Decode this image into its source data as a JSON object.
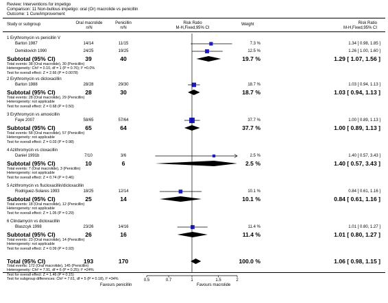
{
  "header": {
    "review": "Review:  Interventions for impetigo",
    "comparison": "Comparison:  11 Non-bullous impetigo: oral (Or) macrolide vs penicillin",
    "outcome": "Outcome:  1 Cure/improvement"
  },
  "columns": {
    "study": "Study or subgroup",
    "exp_title": "Oral macrolide",
    "exp_sub": "n/N",
    "ctl_title": "Penicillin",
    "ctl_sub": "n/N",
    "rr_title": "Risk Ratio",
    "rr_sub": "M-H,Fixed,95% CI",
    "weight": "Weight",
    "rr2_title": "Risk Ratio",
    "rr2_sub": "M-H,Fixed,95% CI"
  },
  "chart_data": {
    "type": "forest",
    "x_scale": "log",
    "xlim": [
      0.5,
      2
    ],
    "x_ticks": [
      "0.5",
      "0.7",
      "1",
      "1.5",
      "2"
    ],
    "x_tick_values": [
      0.5,
      0.7,
      1,
      1.5,
      2
    ],
    "favours_left": "Favours penicillin",
    "favours_right": "Favours macrolide",
    "colors": {
      "study_box": "#1a1ad0",
      "diamond": "#000000",
      "line": "#000000"
    },
    "groups": [
      {
        "title": "1 Erythromycin vs penicillin V",
        "studies": [
          {
            "name": "Barton 1987",
            "exp": "14/14",
            "ctl": "11/15",
            "weight": "7.3 %",
            "ci_text": "1.34 [ 0.98, 1.85 ]",
            "rr": 1.34,
            "lo": 0.98,
            "hi": 1.85,
            "w": 7.3
          },
          {
            "name": "Demidovich 1990",
            "exp": "24/25",
            "ctl": "19/25",
            "weight": "12.5 %",
            "ci_text": "1.26 [ 1.00, 1.60 ]",
            "rr": 1.26,
            "lo": 1.0,
            "hi": 1.6,
            "w": 12.5
          }
        ],
        "subtotal": {
          "label": "Subtotal (95% CI)",
          "exp": "39",
          "ctl": "40",
          "weight": "19.7 %",
          "ci_text": "1.29 [ 1.07, 1.56 ]",
          "rr": 1.29,
          "lo": 1.07,
          "hi": 1.56
        },
        "notes": [
          "Total events: 38 (Oral macrolide), 30 (Penicillin)",
          "Heterogeneity: Chi² = 0.10, df = 1 (P = 0.76); I² =0.0%",
          "Test for overall effect: Z = 2.66 (P = 0.0078)"
        ]
      },
      {
        "title": "2 Erythromycin vs dicloxacillin",
        "studies": [
          {
            "name": "Barton 1988",
            "exp": "28/28",
            "ctl": "29/30",
            "weight": "18.7 %",
            "ci_text": "1.03 [ 0.94, 1.13 ]",
            "rr": 1.03,
            "lo": 0.94,
            "hi": 1.13,
            "w": 18.7
          }
        ],
        "subtotal": {
          "label": "Subtotal (95% CI)",
          "exp": "28",
          "ctl": "30",
          "weight": "18.7 %",
          "ci_text": "1.03 [ 0.94, 1.13 ]",
          "rr": 1.03,
          "lo": 0.94,
          "hi": 1.13
        },
        "notes": [
          "Total events: 28 (Oral macrolide), 29 (Penicillin)",
          "Heterogeneity: not applicable",
          "Test for overall effect: Z = 0.68 (P = 0.50)"
        ]
      },
      {
        "title": "3 Erythromycin vs amoxicillin",
        "studies": [
          {
            "name": "Faye 2007",
            "exp": "58/65",
            "ctl": "57/64",
            "weight": "37.7 %",
            "ci_text": "1.00 [ 0.89, 1.13 ]",
            "rr": 1.0,
            "lo": 0.89,
            "hi": 1.13,
            "w": 37.7
          }
        ],
        "subtotal": {
          "label": "Subtotal (95% CI)",
          "exp": "65",
          "ctl": "64",
          "weight": "37.7 %",
          "ci_text": "1.00 [ 0.89, 1.13 ]",
          "rr": 1.0,
          "lo": 0.89,
          "hi": 1.13
        },
        "notes": [
          "Total events: 58 (Oral macrolide), 57 (Penicillin)",
          "Heterogeneity: not applicable",
          "Test for overall effect: Z = 0.03 (P = 0.98)"
        ]
      },
      {
        "title": "4 Azithromycin vs cloxacillin",
        "studies": [
          {
            "name": "Daniel 1991b",
            "exp": "7/10",
            "ctl": "3/6",
            "weight": "2.5 %",
            "ci_text": "1.40 [ 0.57, 3.43 ]",
            "rr": 1.4,
            "lo": 0.57,
            "hi": 3.43,
            "w": 2.5
          }
        ],
        "subtotal": {
          "label": "Subtotal (95% CI)",
          "exp": "10",
          "ctl": "6",
          "weight": "2.5 %",
          "ci_text": "1.40 [ 0.57, 3.43 ]",
          "rr": 1.4,
          "lo": 0.57,
          "hi": 3.43
        },
        "notes": [
          "Total events: 7 (Oral macrolide), 3 (Penicillin)",
          "Heterogeneity: not applicable",
          "Test for overall effect: Z = 0.74 (P = 0.46)"
        ]
      },
      {
        "title": "5 Azithromycin vs flucloxacillin/dicloxacillin",
        "studies": [
          {
            "name": "Rodriguez-Solares 1993",
            "exp": "18/25",
            "ctl": "12/14",
            "weight": "10.1 %",
            "ci_text": "0.84 [ 0.61, 1.16 ]",
            "rr": 0.84,
            "lo": 0.61,
            "hi": 1.16,
            "w": 10.1
          }
        ],
        "subtotal": {
          "label": "Subtotal (95% CI)",
          "exp": "25",
          "ctl": "14",
          "weight": "10.1 %",
          "ci_text": "0.84 [ 0.61, 1.16 ]",
          "rr": 0.84,
          "lo": 0.61,
          "hi": 1.16
        },
        "notes": [
          "Total events: 18 (Oral macrolide), 12 (Penicillin)",
          "Heterogeneity: not applicable",
          "Test for overall effect: Z = 1.05 (P = 0.29)"
        ]
      },
      {
        "title": "6 Clindamycin vs dicloxacillin",
        "studies": [
          {
            "name": "Blaszcyk 1998",
            "exp": "23/26",
            "ctl": "14/16",
            "weight": "11.4 %",
            "ci_text": "1.01 [ 0.80, 1.27 ]",
            "rr": 1.01,
            "lo": 0.8,
            "hi": 1.27,
            "w": 11.4
          }
        ],
        "subtotal": {
          "label": "Subtotal (95% CI)",
          "exp": "26",
          "ctl": "16",
          "weight": "11.4 %",
          "ci_text": "1.01 [ 0.80, 1.27 ]",
          "rr": 1.01,
          "lo": 0.8,
          "hi": 1.27
        },
        "notes": [
          "Total events: 23 (Oral macrolide), 14 (Penicillin)",
          "Heterogeneity: not applicable",
          "Test for overall effect: Z = 0.09 (P = 0.93)"
        ]
      }
    ],
    "total": {
      "label": "Total (95% CI)",
      "exp": "193",
      "ctl": "170",
      "weight": "100.0 %",
      "ci_text": "1.06 [ 0.98, 1.15 ]",
      "rr": 1.06,
      "lo": 0.98,
      "hi": 1.15,
      "notes": [
        "Total events: 172 (Oral macrolide), 145 (Penicillin)",
        "Heterogeneity: Chi² = 7.91, df = 6 (P = 0.25); I² =24%",
        "Test for overall effect: Z = 1.46 (P = 0.15)",
        "Test for subgroup differences: Chi² = 7.61, df = 5 (P = 0.18), I² =34%"
      ]
    }
  }
}
